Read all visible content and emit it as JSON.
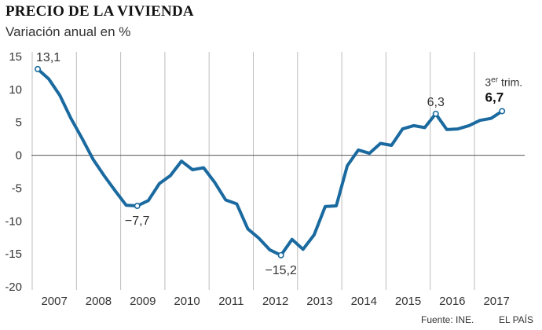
{
  "chart_data": {
    "type": "line",
    "title": "PRECIO DE LA VIVIENDA",
    "subtitle": "Variación anual en %",
    "ylim": [
      -20,
      15
    ],
    "yticks": [
      15,
      10,
      5,
      0,
      -5,
      -10,
      -15,
      -20
    ],
    "ytick_labels": [
      "15",
      "10",
      "5",
      "0",
      "-5",
      "-10",
      "-15",
      "-20"
    ],
    "xticks": [
      "2007",
      "2008",
      "2009",
      "2010",
      "2011",
      "2012",
      "2013",
      "2014",
      "2015",
      "2016",
      "2017"
    ],
    "grid": "vertical year separators",
    "series": [
      {
        "color": "#1a6aa0",
        "quarters": [
          "2007-T1",
          "2007-T2",
          "2007-T3",
          "2007-T4",
          "2008-T1",
          "2008-T2",
          "2008-T3",
          "2008-T4",
          "2009-T1",
          "2009-T2",
          "2009-T3",
          "2009-T4",
          "2010-T1",
          "2010-T2",
          "2010-T3",
          "2010-T4",
          "2011-T1",
          "2011-T2",
          "2011-T3",
          "2011-T4",
          "2012-T1",
          "2012-T2",
          "2012-T3",
          "2012-T4",
          "2013-T1",
          "2013-T2",
          "2013-T3",
          "2013-T4",
          "2014-T1",
          "2014-T2",
          "2014-T3",
          "2014-T4",
          "2015-T1",
          "2015-T2",
          "2015-T3",
          "2015-T4",
          "2016-T1",
          "2016-T2",
          "2016-T3",
          "2016-T4",
          "2017-T1",
          "2017-T2",
          "2017-T3"
        ],
        "values": [
          13.1,
          11.6,
          9.1,
          5.6,
          2.6,
          -0.6,
          -3.1,
          -5.4,
          -7.6,
          -7.7,
          -6.9,
          -4.3,
          -3.1,
          -0.9,
          -2.2,
          -1.9,
          -4.1,
          -6.8,
          -7.4,
          -11.2,
          -12.6,
          -14.4,
          -15.2,
          -12.8,
          -14.3,
          -12.1,
          -7.8,
          -7.7,
          -1.6,
          0.8,
          0.3,
          1.8,
          1.5,
          4.0,
          4.5,
          4.2,
          6.3,
          3.9,
          4.0,
          4.5,
          5.3,
          5.6,
          6.7
        ]
      }
    ],
    "annotations": [
      {
        "index": 0,
        "label": "13,1"
      },
      {
        "index": 9,
        "label": "−7,7"
      },
      {
        "index": 22,
        "label": "−15,2"
      },
      {
        "index": 36,
        "label": "6,3"
      },
      {
        "index": 42,
        "label": "6,7",
        "prefix": "3",
        "sup": "er",
        "suffix": " trim."
      }
    ]
  },
  "footer": {
    "source": "Fuente: INE.",
    "brand": "EL PAÍS"
  }
}
